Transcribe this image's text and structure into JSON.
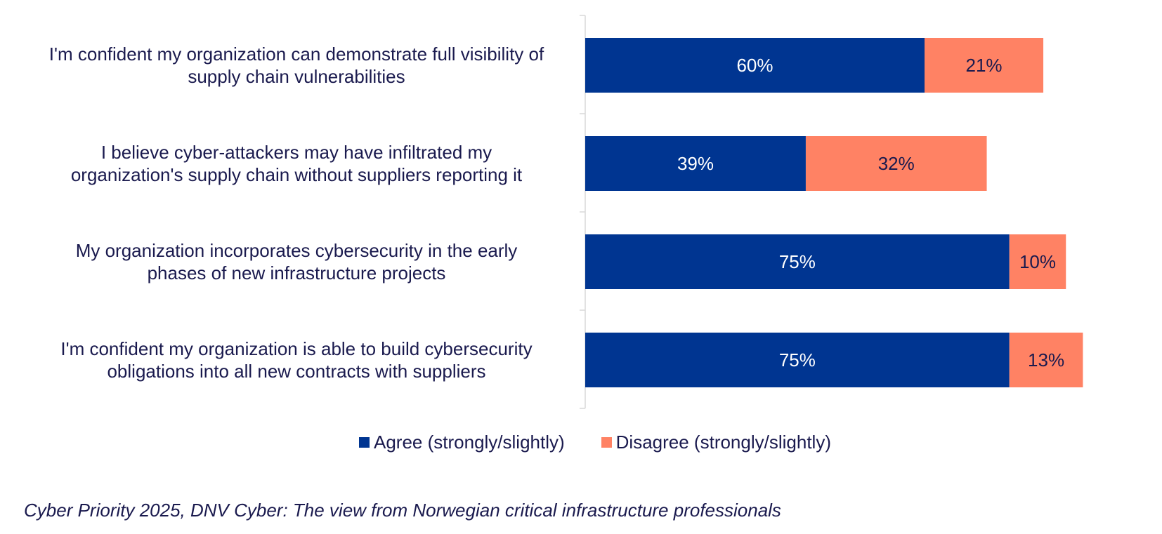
{
  "chart_data": {
    "type": "bar",
    "orientation": "horizontal",
    "stacked": true,
    "categories": [
      "I'm confident my organization can demonstrate full visibility of supply chain vulnerabilities",
      "I believe cyber-attackers may have infiltrated my organization's supply chain without suppliers reporting it",
      "My organization incorporates cybersecurity in the early phases of new infrastructure projects",
      "I'm confident my organization is able to build cybersecurity obligations into all new contracts with suppliers"
    ],
    "category_lines": [
      [
        "I'm confident my organization can demonstrate full visibility of",
        "supply chain vulnerabilities"
      ],
      [
        "I believe cyber-attackers may have infiltrated my",
        "organization's supply chain without suppliers reporting it"
      ],
      [
        "My organization incorporates cybersecurity in the early",
        "phases of new infrastructure projects"
      ],
      [
        "I'm confident my organization is able to build cybersecurity",
        "obligations into all new contracts with suppliers"
      ]
    ],
    "series": [
      {
        "name": "Agree (strongly/slightly)",
        "values": [
          60,
          39,
          75,
          75
        ],
        "color": "#003591",
        "label_color": "#ffffff"
      },
      {
        "name": "Disagree (strongly/slightly)",
        "values": [
          21,
          32,
          10,
          13
        ],
        "color": "#ff8264",
        "label_color": "#1a1a4e"
      }
    ],
    "value_suffix": "%",
    "xlim": [
      0,
      100
    ],
    "legend_position": "bottom"
  },
  "source": "Cyber Priority 2025, DNV Cyber: The view from Norwegian critical infrastructure professionals",
  "colors": {
    "text": "#1a1a4e",
    "axis": "#d9d9d9"
  }
}
